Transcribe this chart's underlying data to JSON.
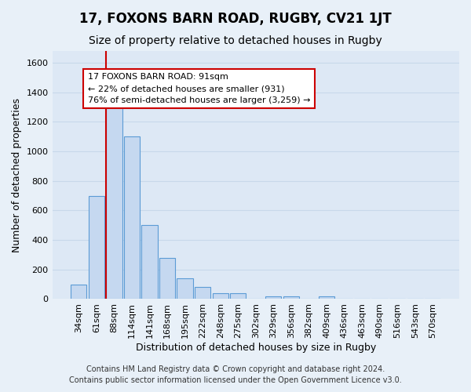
{
  "title": "17, FOXONS BARN ROAD, RUGBY, CV21 1JT",
  "subtitle": "Size of property relative to detached houses in Rugby",
  "xlabel": "Distribution of detached houses by size in Rugby",
  "ylabel": "Number of detached properties",
  "bar_labels": [
    "34sqm",
    "61sqm",
    "88sqm",
    "114sqm",
    "141sqm",
    "168sqm",
    "195sqm",
    "222sqm",
    "248sqm",
    "275sqm",
    "302sqm",
    "329sqm",
    "356sqm",
    "382sqm",
    "409sqm",
    "436sqm",
    "463sqm",
    "490sqm",
    "516sqm",
    "543sqm",
    "570sqm"
  ],
  "bar_values": [
    100,
    700,
    1340,
    1100,
    500,
    280,
    140,
    80,
    40,
    40,
    0,
    20,
    20,
    0,
    20,
    0,
    0,
    0,
    0,
    0,
    5
  ],
  "bar_color": "#c5d8f0",
  "bar_edge_color": "#5b9bd5",
  "ylim": [
    0,
    1680
  ],
  "yticks": [
    0,
    200,
    400,
    600,
    800,
    1000,
    1200,
    1400,
    1600
  ],
  "property_line_color": "#cc0000",
  "annotation_title": "17 FOXONS BARN ROAD: 91sqm",
  "annotation_line1": "← 22% of detached houses are smaller (931)",
  "annotation_line2": "76% of semi-detached houses are larger (3,259) →",
  "annotation_box_color": "#ffffff",
  "annotation_box_edge_color": "#cc0000",
  "footer1": "Contains HM Land Registry data © Crown copyright and database right 2024.",
  "footer2": "Contains public sector information licensed under the Open Government Licence v3.0.",
  "background_color": "#e8f0f8",
  "plot_background_color": "#dde8f5",
  "grid_color": "#c8d8ea",
  "title_fontsize": 12,
  "subtitle_fontsize": 10,
  "ylabel_fontsize": 9,
  "xlabel_fontsize": 9,
  "tick_fontsize": 8,
  "annot_fontsize": 8,
  "footer_fontsize": 7
}
